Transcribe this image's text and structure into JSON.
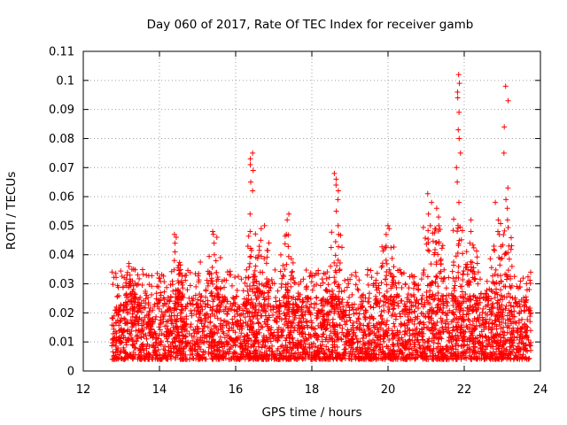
{
  "chart_data": {
    "type": "scatter",
    "title": "Day 060 of 2017, Rate Of TEC Index for receiver gamb",
    "xlabel": "GPS time / hours",
    "ylabel": "ROTI / TECUs",
    "xlim": [
      12,
      24
    ],
    "ylim": [
      0,
      0.11
    ],
    "x_ticks": [
      12,
      14,
      16,
      18,
      20,
      22,
      24
    ],
    "x_tick_labels": [
      "12",
      "14",
      "16",
      "18",
      "20",
      "22",
      "24"
    ],
    "y_ticks": [
      0,
      0.01,
      0.02,
      0.03,
      0.04,
      0.05,
      0.06,
      0.07,
      0.08,
      0.09,
      0.1,
      0.11
    ],
    "y_tick_labels": [
      "0",
      "0.01",
      "0.02",
      "0.03",
      "0.04",
      "0.05",
      "0.06",
      "0.07",
      "0.08",
      "0.09",
      "0.1",
      "0.11"
    ],
    "grid": true,
    "marker": "+",
    "color": "#ff0000",
    "x_start": 12.75,
    "x_end": 23.75,
    "base_level": 0.012,
    "spike_clusters": [
      {
        "x": 13.25,
        "values": [
          0.031,
          0.033,
          0.035,
          0.036,
          0.037
        ]
      },
      {
        "x": 14.45,
        "values": [
          0.038,
          0.041,
          0.044,
          0.046,
          0.047
        ]
      },
      {
        "x": 15.45,
        "values": [
          0.04,
          0.044,
          0.046,
          0.047,
          0.048
        ]
      },
      {
        "x": 16.4,
        "values": [
          0.048,
          0.054,
          0.062,
          0.065,
          0.069,
          0.071,
          0.073,
          0.075
        ]
      },
      {
        "x": 16.7,
        "values": [
          0.045,
          0.049,
          0.05
        ]
      },
      {
        "x": 17.35,
        "values": [
          0.047,
          0.052,
          0.054
        ]
      },
      {
        "x": 18.65,
        "values": [
          0.05,
          0.055,
          0.059,
          0.062,
          0.064,
          0.066,
          0.068
        ]
      },
      {
        "x": 20.0,
        "values": [
          0.043,
          0.047,
          0.049,
          0.05
        ]
      },
      {
        "x": 21.1,
        "values": [
          0.05,
          0.054,
          0.058,
          0.061
        ]
      },
      {
        "x": 21.3,
        "values": [
          0.05,
          0.053,
          0.056
        ]
      },
      {
        "x": 21.85,
        "values": [
          0.058,
          0.065,
          0.07,
          0.075,
          0.08,
          0.083,
          0.089,
          0.094,
          0.096,
          0.099,
          0.102
        ]
      },
      {
        "x": 22.2,
        "values": [
          0.044,
          0.048,
          0.052
        ]
      },
      {
        "x": 22.85,
        "values": [
          0.048,
          0.052,
          0.058
        ]
      },
      {
        "x": 23.1,
        "values": [
          0.052,
          0.056,
          0.059,
          0.063,
          0.075,
          0.084,
          0.093,
          0.098
        ]
      }
    ]
  }
}
